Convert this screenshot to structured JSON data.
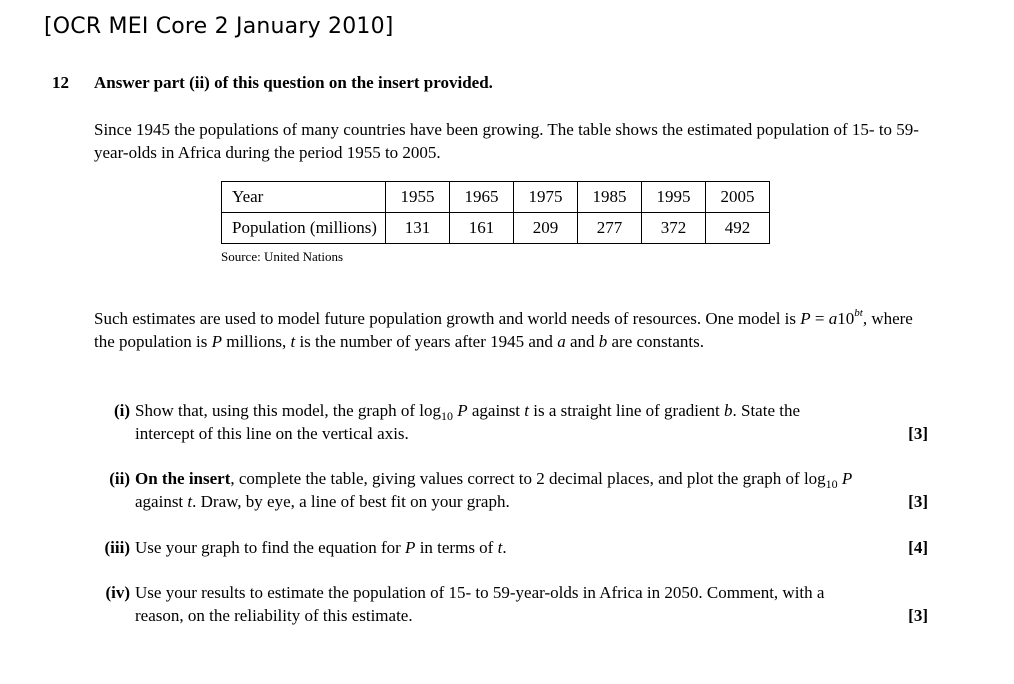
{
  "header": "[OCR MEI Core 2 January 2010]",
  "question": {
    "number": "12",
    "instruction": "Answer part (ii) of this question on the insert provided."
  },
  "intro": "Since 1945 the populations of many countries have been growing. The table shows the estimated population of 15- to 59-year-olds in Africa during the period 1955 to 2005.",
  "table": {
    "row_labels": [
      "Year",
      "Population (millions)"
    ],
    "years": [
      "1955",
      "1965",
      "1975",
      "1985",
      "1995",
      "2005"
    ],
    "population": [
      "131",
      "161",
      "209",
      "277",
      "372",
      "492"
    ],
    "source": "Source: United Nations"
  },
  "model": {
    "before": "Such estimates are used to model future population growth and world needs of resources. One model is ",
    "P": "P",
    "equals": " = ",
    "a": "a",
    "ten": "10",
    "exponent": "bt",
    "after1": ", where the population is ",
    "after2": " millions, ",
    "t": "t",
    "after3": " is the number of years after 1945 and ",
    "and": " and ",
    "b": "b",
    "after4": " are constants."
  },
  "parts": {
    "i": {
      "label": "(i)",
      "t1": "Show that, using this model, the graph of log",
      "sub": "10",
      "P": "P",
      "t2": " against ",
      "t": "t",
      "t3": " is a straight line of gradient ",
      "b": "b",
      "t4": ". State the intercept of this line on the vertical axis.",
      "marks": "[3]"
    },
    "ii": {
      "label": "(ii)",
      "bold": "On the insert",
      "t1": ", complete the table, giving values correct to 2 decimal places, and plot the graph of log",
      "sub": "10",
      "P": "P",
      "t2": " against ",
      "t": "t",
      "t3": ". Draw, by eye, a line of best fit on your graph.",
      "marks": "[3]"
    },
    "iii": {
      "label": "(iii)",
      "t1": "Use your graph to find the equation for ",
      "P": "P",
      "t2": " in terms of ",
      "t": "t",
      "t3": ".",
      "marks": "[4]"
    },
    "iv": {
      "label": "(iv)",
      "t1": "Use your results to estimate the population of 15- to 59-year-olds in Africa in 2050. Comment, with a reason, on the reliability of this estimate.",
      "marks": "[3]"
    }
  }
}
